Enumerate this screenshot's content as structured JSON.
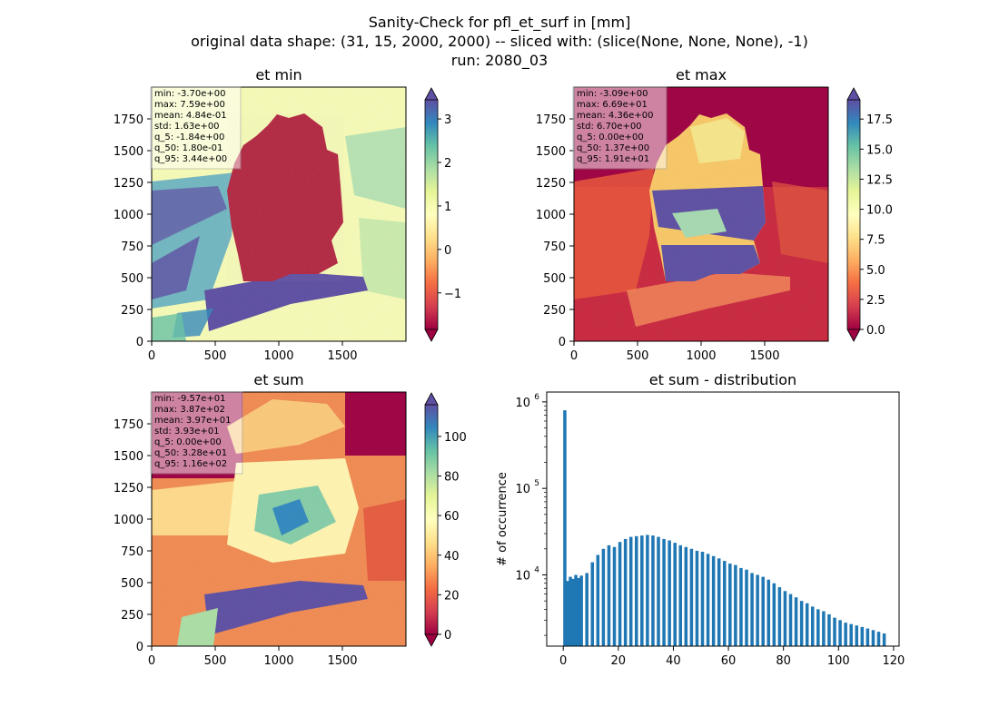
{
  "figure": {
    "title_lines": [
      "Sanity-Check for pfl_et_surf in [mm]",
      "original data shape: (31, 15, 2000, 2000) -- sliced with: (slice(None, None, None), -1)",
      "run: 2080_03"
    ]
  },
  "chart_data": [
    {
      "type": "heatmap",
      "title": "et min",
      "xlabel": "",
      "ylabel": "",
      "x_ticks": [
        "0",
        "500",
        "1000",
        "1500"
      ],
      "y_ticks": [
        "0",
        "250",
        "500",
        "750",
        "1000",
        "1250",
        "1500",
        "1750"
      ],
      "xlim": [
        0,
        2000
      ],
      "ylim": [
        0,
        2000
      ],
      "colormap": "Spectral",
      "colorbar": {
        "ticks": [
          "−1",
          "0",
          "1",
          "2",
          "3"
        ],
        "tick_values": [
          -1,
          0,
          1,
          2,
          3
        ],
        "range": [
          -1.84,
          3.44
        ],
        "extend": "both"
      },
      "stats": [
        "min: -3.70e+00",
        "max: 7.59e+00",
        "mean: 4.84e-01",
        "std: 1.63e+00",
        "q_5: -1.84e+00",
        "q_50: 1.80e-01",
        "q_95: 3.44e+00"
      ]
    },
    {
      "type": "heatmap",
      "title": "et max",
      "xlabel": "",
      "ylabel": "",
      "x_ticks": [
        "0",
        "500",
        "1000",
        "1500"
      ],
      "y_ticks": [
        "0",
        "250",
        "500",
        "750",
        "1000",
        "1250",
        "1500",
        "1750"
      ],
      "xlim": [
        0,
        2000
      ],
      "ylim": [
        0,
        2000
      ],
      "colormap": "Spectral",
      "colorbar": {
        "ticks": [
          "0.0",
          "2.5",
          "5.0",
          "7.5",
          "10.0",
          "12.5",
          "15.0",
          "17.5"
        ],
        "tick_values": [
          0,
          2.5,
          5,
          7.5,
          10,
          12.5,
          15,
          17.5
        ],
        "range": [
          0.0,
          19.1
        ],
        "extend": "both"
      },
      "stats": [
        "min: -3.09e+00",
        "max: 6.69e+01",
        "mean: 4.36e+00",
        "std: 6.70e+00",
        "q_5: 0.00e+00",
        "q_50: 1.37e+00",
        "q_95: 1.91e+01"
      ]
    },
    {
      "type": "heatmap",
      "title": "et sum",
      "xlabel": "",
      "ylabel": "",
      "x_ticks": [
        "0",
        "500",
        "1000",
        "1500"
      ],
      "y_ticks": [
        "0",
        "250",
        "500",
        "750",
        "1000",
        "1250",
        "1500",
        "1750"
      ],
      "xlim": [
        0,
        2000
      ],
      "ylim": [
        0,
        2000
      ],
      "colormap": "Spectral",
      "colorbar": {
        "ticks": [
          "0",
          "20",
          "40",
          "60",
          "80",
          "100"
        ],
        "tick_values": [
          0,
          20,
          40,
          60,
          80,
          100
        ],
        "range": [
          0.0,
          116.0
        ],
        "extend": "both"
      },
      "stats": [
        "min: -9.57e+01",
        "max: 3.87e+02",
        "mean: 3.97e+01",
        "std: 3.93e+01",
        "q_5: 0.00e+00",
        "q_50: 3.28e+01",
        "q_95: 1.16e+02"
      ]
    },
    {
      "type": "bar",
      "title": "et sum - distribution",
      "xlabel": "",
      "ylabel": "# of occurrence",
      "yscale": "log",
      "ylim": [
        1500,
        1300000
      ],
      "xlim": [
        -6,
        122
      ],
      "x_ticks": [
        "0",
        "20",
        "40",
        "60",
        "80",
        "100",
        "120"
      ],
      "x_tick_values": [
        0,
        20,
        40,
        60,
        80,
        100,
        120
      ],
      "y_ticks": [
        {
          "base": "10",
          "exp": "4",
          "value": 10000
        },
        {
          "base": "10",
          "exp": "5",
          "value": 100000
        },
        {
          "base": "10",
          "exp": "6",
          "value": 1000000
        }
      ],
      "color": "#1f77b4",
      "bin_width": 0.58,
      "bins": {
        "x": [
          0,
          1,
          2,
          3,
          4,
          5,
          6,
          8,
          10,
          12,
          14,
          16,
          18,
          20,
          22,
          24,
          26,
          28,
          30,
          32,
          34,
          36,
          38,
          40,
          42,
          44,
          46,
          48,
          50,
          52,
          54,
          56,
          58,
          60,
          62,
          64,
          66,
          68,
          70,
          72,
          74,
          76,
          78,
          80,
          82,
          84,
          86,
          88,
          90,
          92,
          94,
          96,
          98,
          100,
          102,
          104,
          106,
          108,
          110,
          112,
          114,
          116
        ],
        "counts": [
          800000,
          8500,
          9500,
          9000,
          10000,
          9200,
          9800,
          10500,
          14000,
          17000,
          20000,
          22000,
          21000,
          24000,
          26000,
          27500,
          28000,
          28500,
          29000,
          28500,
          27500,
          26000,
          25000,
          23500,
          22000,
          21000,
          20000,
          19000,
          18500,
          17500,
          16500,
          15500,
          14500,
          13500,
          13000,
          12000,
          11500,
          10500,
          10000,
          9500,
          8800,
          8000,
          7200,
          6500,
          6000,
          5500,
          5000,
          4700,
          4300,
          4000,
          3800,
          3500,
          3200,
          3000,
          2800,
          2700,
          2600,
          2500,
          2400,
          2300,
          2200,
          2100
        ]
      }
    }
  ]
}
